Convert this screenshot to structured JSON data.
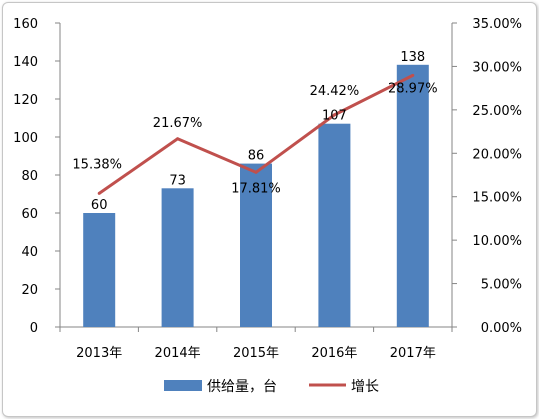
{
  "chart_data": {
    "type": "bar+line",
    "categories": [
      "2013年",
      "2014年",
      "2015年",
      "2016年",
      "2017年"
    ],
    "series": [
      {
        "name": "供给量，台",
        "type": "bar",
        "axis": "left",
        "values": [
          60,
          73,
          86,
          107,
          138
        ],
        "labels": [
          "60",
          "73",
          "86",
          "107",
          "138"
        ],
        "color": "#4f81bd"
      },
      {
        "name": "增长",
        "type": "line",
        "axis": "right",
        "values": [
          15.38,
          21.67,
          17.81,
          24.42,
          28.97
        ],
        "labels": [
          "15.38%",
          "21.67%",
          "17.81%",
          "24.42%",
          "28.97%"
        ],
        "color": "#c0504d"
      }
    ],
    "y_left": {
      "min": 0,
      "max": 160,
      "ticks": [
        "0",
        "20",
        "40",
        "60",
        "80",
        "100",
        "120",
        "140",
        "160"
      ]
    },
    "y_right": {
      "min": 0,
      "max": 35,
      "ticks": [
        "0.00%",
        "5.00%",
        "10.00%",
        "15.00%",
        "20.00%",
        "25.00%",
        "30.00%",
        "35.00%"
      ]
    },
    "grid": false,
    "legend_position": "bottom"
  }
}
